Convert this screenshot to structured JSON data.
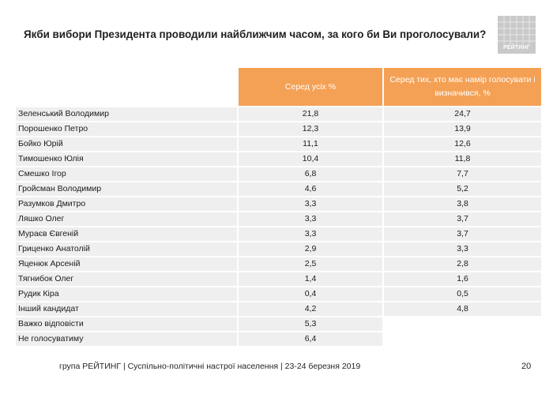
{
  "slide": {
    "title": "Якби вибори Президента проводили найближчим часом, за кого би Ви проголосували?",
    "logo_text": "РЕЙТИНГ",
    "footer": "група РЕЙТИНГ | Суспільно-політичні настрої населення  | 23-24 березня 2019",
    "page_number": "20",
    "accent_color": "#f4a155"
  },
  "table": {
    "columns": [
      "Серед усіх %",
      "Серед тих, хто має намір голосувати і визначився, %"
    ],
    "rows": [
      {
        "name": "Зеленський Володимир",
        "all": "21,8",
        "decided": "24,7"
      },
      {
        "name": "Порошенко Петро",
        "all": "12,3",
        "decided": "13,9"
      },
      {
        "name": "Бойко Юрій",
        "all": "11,1",
        "decided": "12,6"
      },
      {
        "name": "Тимошенко Юлія",
        "all": "10,4",
        "decided": "11,8"
      },
      {
        "name": "Смешко Ігор",
        "all": "6,8",
        "decided": "7,7"
      },
      {
        "name": "Гройсман Володимир",
        "all": "4,6",
        "decided": "5,2"
      },
      {
        "name": "Разумков Дмитро",
        "all": "3,3",
        "decided": "3,8"
      },
      {
        "name": "Ляшко Олег",
        "all": "3,3",
        "decided": "3,7"
      },
      {
        "name": "Мураєв Євгеній",
        "all": "3,3",
        "decided": "3,7"
      },
      {
        "name": "Гриценко Анатолій",
        "all": "2,9",
        "decided": "3,3"
      },
      {
        "name": "Яценюк  Арсеній",
        "all": "2,5",
        "decided": "2,8"
      },
      {
        "name": "Тягнибок Олег",
        "all": "1,4",
        "decided": "1,6"
      },
      {
        "name": "Рудик Кіра",
        "all": "0,4",
        "decided": "0,5"
      },
      {
        "name": "Інший кандидат",
        "all": "4,2",
        "decided": "4,8"
      },
      {
        "name": "Важко відповісти",
        "all": "5,3",
        "decided": ""
      },
      {
        "name": "Не голосуватиму",
        "all": "6,4",
        "decided": ""
      }
    ]
  }
}
